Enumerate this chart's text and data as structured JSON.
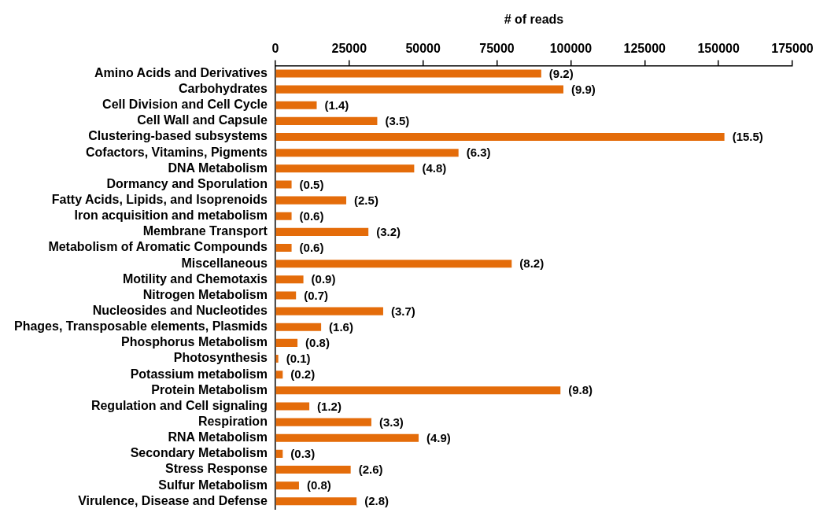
{
  "chart_data": {
    "type": "bar",
    "orientation": "horizontal",
    "xlabel": "# of reads",
    "categories": [
      "Amino Acids and Derivatives",
      "Carbohydrates",
      "Cell Division and Cell Cycle",
      "Cell Wall and Capsule",
      "Clustering-based subsystems",
      "Cofactors, Vitamins, Pigments",
      "DNA Metabolism",
      "Dormancy and Sporulation",
      "Fatty Acids, Lipids, and Isoprenoids",
      "Iron acquisition and metabolism",
      "Membrane Transport",
      "Metabolism of Aromatic Compounds",
      "Miscellaneous",
      "Motility and Chemotaxis",
      "Nitrogen Metabolism",
      "Nucleosides and Nucleotides",
      "Phages, Transposable elements, Plasmids",
      "Phosphorus Metabolism",
      "Photosynthesis",
      "Potassium metabolism",
      "Protein Metabolism",
      "Regulation and Cell signaling",
      "Respiration",
      "RNA Metabolism",
      "Secondary Metabolism",
      "Stress Response",
      "Sulfur Metabolism",
      "Virulence, Disease and Defense"
    ],
    "values": [
      90000,
      97500,
      14000,
      34500,
      152000,
      62000,
      47000,
      5500,
      24000,
      5500,
      31500,
      5500,
      80000,
      9500,
      7000,
      36500,
      15500,
      7500,
      1000,
      2500,
      96500,
      11500,
      32500,
      48500,
      2500,
      25500,
      8000,
      27500
    ],
    "annotations": [
      {
        "text": "(9.2)",
        "x": 90000,
        "y": "Amino Acids and Derivatives"
      },
      {
        "text": "(9.9)",
        "x": 97500,
        "y": "Carbohydrates"
      },
      {
        "text": "(1.4)",
        "x": 14000,
        "y": "Cell Division and Cell Cycle"
      },
      {
        "text": "(3.5)",
        "x": 34500,
        "y": "Cell Wall and Capsule"
      },
      {
        "text": "(15.5)",
        "x": 152000,
        "y": "Clustering-based subsystems"
      },
      {
        "text": "(6.3)",
        "x": 62000,
        "y": "Cofactors, Vitamins, Pigments"
      },
      {
        "text": "(4.8)",
        "x": 47000,
        "y": "DNA Metabolism"
      },
      {
        "text": "(0.5)",
        "x": 5500,
        "y": "Dormancy and Sporulation"
      },
      {
        "text": "(2.5)",
        "x": 24000,
        "y": "Fatty Acids, Lipids, and Isoprenoids"
      },
      {
        "text": "(0.6)",
        "x": 5500,
        "y": "Iron acquisition and metabolism"
      },
      {
        "text": "(3.2)",
        "x": 31500,
        "y": "Membrane Transport"
      },
      {
        "text": "(0.6)",
        "x": 5500,
        "y": "Metabolism of Aromatic Compounds"
      },
      {
        "text": "(8.2)",
        "x": 80000,
        "y": "Miscellaneous"
      },
      {
        "text": "(0.9)",
        "x": 9500,
        "y": "Motility and Chemotaxis"
      },
      {
        "text": "(0.7)",
        "x": 7000,
        "y": "Nitrogen Metabolism"
      },
      {
        "text": "(3.7)",
        "x": 36500,
        "y": "Nucleosides and Nucleotides"
      },
      {
        "text": "(1.6)",
        "x": 15500,
        "y": "Phages, Transposable elements, Plasmids"
      },
      {
        "text": "(0.8)",
        "x": 7500,
        "y": "Phosphorus Metabolism"
      },
      {
        "text": "(0.1)",
        "x": 1000,
        "y": "Photosynthesis"
      },
      {
        "text": "(0.2)",
        "x": 2500,
        "y": "Potassium metabolism"
      },
      {
        "text": "(9.8)",
        "x": 96500,
        "y": "Protein Metabolism"
      },
      {
        "text": "(1.2)",
        "x": 11500,
        "y": "Regulation and Cell signaling"
      },
      {
        "text": "(3.3)",
        "x": 32500,
        "y": "Respiration"
      },
      {
        "text": "(4.9)",
        "x": 48500,
        "y": "RNA Metabolism"
      },
      {
        "text": "(0.3)",
        "x": 2500,
        "y": "Secondary Metabolism"
      },
      {
        "text": "(2.6)",
        "x": 25500,
        "y": "Stress Response"
      },
      {
        "text": "(0.8)",
        "x": 8000,
        "y": "Sulfur Metabolism"
      },
      {
        "text": "(2.8)",
        "x": 27500,
        "y": "Virulence, Disease and Defense"
      }
    ],
    "color": "#e46c0a",
    "xlim": [
      0,
      175000
    ],
    "xticks": [
      0,
      25000,
      50000,
      75000,
      100000,
      125000,
      150000,
      175000
    ]
  }
}
